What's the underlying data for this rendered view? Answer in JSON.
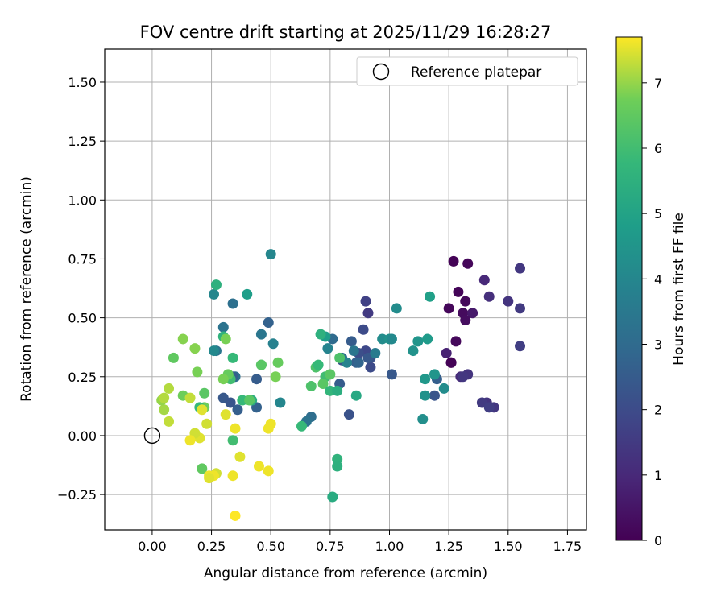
{
  "chart_data": {
    "type": "scatter",
    "title": "FOV centre drift starting at 2025/11/29 16:28:27",
    "xlabel": "Angular distance from reference (arcmin)",
    "ylabel": "Rotation from reference (arcmin)",
    "xlim": [
      -0.2,
      1.83
    ],
    "ylim": [
      -0.4,
      1.64
    ],
    "xticks": [
      "0.00",
      "0.25",
      "0.50",
      "0.75",
      "1.00",
      "1.25",
      "1.50",
      "1.75"
    ],
    "yticks": [
      "−0.25",
      "0.00",
      "0.25",
      "0.50",
      "0.75",
      "1.00",
      "1.25",
      "1.50"
    ],
    "grid": true,
    "legend": {
      "placement": "top-right",
      "entries": [
        "Reference platepar"
      ]
    },
    "reference_point": {
      "x": 0.0,
      "y": 0.0,
      "marker": "open-circle",
      "color": "#000000"
    },
    "colorbar": {
      "label": "Hours from first FF file",
      "min": 0,
      "max": 7.7,
      "ticks": [
        "0",
        "1",
        "2",
        "3",
        "4",
        "5",
        "6",
        "7"
      ],
      "colormap": "viridis"
    },
    "series": [
      {
        "x": [
          1.27,
          1.33,
          1.29,
          1.32,
          1.31,
          1.25,
          1.35,
          1.32,
          1.28,
          1.26,
          1.26,
          1.24,
          1.3,
          1.4,
          1.42,
          1.41,
          1.44,
          1.5,
          1.55,
          1.55,
          1.55,
          1.33,
          1.31,
          1.39,
          1.42,
          0.9,
          0.91,
          0.89,
          0.91,
          0.9,
          0.87,
          0.92,
          0.92,
          0.91,
          0.84,
          0.8,
          0.79,
          0.86,
          0.87,
          0.83,
          1.01,
          1.19,
          1.2,
          0.49,
          0.51,
          0.46,
          0.34,
          0.3,
          0.27,
          0.35,
          0.34,
          0.3,
          0.33,
          0.44,
          0.36,
          0.44,
          0.38,
          0.76,
          0.8,
          0.67,
          0.65,
          0.73,
          0.74,
          0.82,
          0.85,
          0.94,
          0.97,
          1.0,
          1.01,
          1.03,
          1.1,
          1.12,
          1.16,
          1.17,
          1.19,
          1.15,
          1.15,
          1.14,
          1.23,
          0.54,
          0.5,
          0.26,
          0.27,
          0.4,
          0.3,
          0.34,
          0.46,
          0.42,
          0.33,
          0.26,
          0.71,
          0.73,
          0.69,
          0.72,
          0.75,
          0.78,
          0.7,
          0.67,
          0.86,
          0.79,
          0.75,
          0.78,
          0.78,
          0.76,
          0.63,
          0.53,
          0.52,
          0.46,
          0.41,
          0.32,
          0.31,
          0.3,
          0.34,
          0.22,
          0.22,
          0.19,
          0.18,
          0.09,
          0.07,
          0.13,
          0.07,
          0.05,
          0.04,
          0.05,
          0.2,
          0.23,
          0.21,
          0.13,
          0.16,
          0.2,
          0.24,
          0.21,
          0.18,
          0.16,
          0.31,
          0.27,
          0.37,
          0.35,
          0.34,
          0.26,
          0.24,
          0.35,
          0.45,
          0.49,
          0.5,
          0.49
        ],
        "y": [
          0.74,
          0.73,
          0.61,
          0.57,
          0.52,
          0.54,
          0.52,
          0.49,
          0.4,
          0.31,
          0.31,
          0.35,
          0.25,
          0.66,
          0.59,
          0.14,
          0.12,
          0.57,
          0.71,
          0.54,
          0.38,
          0.26,
          0.25,
          0.14,
          0.12,
          0.57,
          0.52,
          0.45,
          0.34,
          0.36,
          0.35,
          0.33,
          0.29,
          0.33,
          0.4,
          0.32,
          0.22,
          0.31,
          0.31,
          0.09,
          0.26,
          0.17,
          0.24,
          0.48,
          0.39,
          0.43,
          0.56,
          0.46,
          0.36,
          0.25,
          0.25,
          0.16,
          0.14,
          0.24,
          0.11,
          0.12,
          0.15,
          0.41,
          0.33,
          0.08,
          0.06,
          0.42,
          0.37,
          0.31,
          0.36,
          0.35,
          0.41,
          0.41,
          0.41,
          0.54,
          0.36,
          0.4,
          0.41,
          0.59,
          0.26,
          0.24,
          0.17,
          0.07,
          0.2,
          0.14,
          0.77,
          0.6,
          0.64,
          0.6,
          0.42,
          0.33,
          0.3,
          0.15,
          0.24,
          0.36,
          0.43,
          0.25,
          0.29,
          0.22,
          0.19,
          0.19,
          0.3,
          0.21,
          0.17,
          0.33,
          0.26,
          -0.1,
          -0.13,
          -0.26,
          0.04,
          0.31,
          0.25,
          0.3,
          0.15,
          0.26,
          0.41,
          0.24,
          -0.02,
          0.18,
          0.12,
          0.27,
          0.37,
          0.33,
          0.2,
          0.17,
          0.06,
          0.11,
          0.15,
          0.16,
          0.12,
          0.05,
          -0.14,
          0.41,
          0.16,
          -0.01,
          -0.17,
          0.11,
          0.01,
          -0.02,
          0.09,
          -0.16,
          -0.09,
          0.03,
          -0.17,
          -0.17,
          -0.18,
          -0.34,
          -0.13,
          -0.15,
          0.05,
          0.03
        ],
        "hours": [
          0.05,
          0.15,
          0.1,
          0.2,
          0.25,
          0.15,
          0.6,
          0.3,
          0.2,
          0.1,
          0.05,
          0.8,
          1.1,
          1.0,
          1.2,
          1.3,
          1.4,
          1.3,
          1.4,
          1.5,
          1.6,
          1.3,
          1.4,
          1.5,
          1.6,
          1.7,
          1.5,
          2.0,
          1.6,
          1.9,
          2.1,
          2.2,
          2.0,
          2.4,
          2.5,
          2.3,
          2.5,
          2.6,
          2.8,
          2.2,
          2.4,
          2.3,
          2.6,
          2.7,
          3.8,
          3.4,
          3.2,
          3.3,
          3.4,
          3.2,
          2.6,
          2.4,
          2.3,
          2.5,
          2.6,
          2.7,
          5.8,
          3.0,
          3.3,
          3.1,
          3.3,
          4.8,
          3.9,
          3.9,
          3.4,
          3.6,
          4.2,
          4.4,
          4.1,
          4.2,
          4.4,
          4.5,
          4.7,
          4.9,
          4.5,
          4.6,
          4.4,
          4.3,
          4.2,
          4.0,
          4.0,
          4.0,
          5.5,
          4.8,
          5.6,
          5.8,
          6.0,
          5.4,
          6.0,
          4.1,
          5.5,
          6.0,
          6.2,
          6.4,
          5.7,
          5.4,
          5.8,
          6.2,
          5.2,
          6.2,
          6.4,
          5.6,
          5.5,
          5.3,
          5.8,
          6.6,
          6.8,
          6.4,
          6.4,
          6.6,
          6.8,
          6.8,
          6.0,
          6.4,
          6.7,
          6.8,
          6.9,
          6.5,
          7.2,
          6.7,
          7.3,
          7.1,
          7.0,
          7.2,
          5.8,
          7.4,
          6.5,
          6.9,
          7.3,
          7.5,
          7.6,
          7.5,
          7.4,
          7.6,
          7.5,
          7.4,
          7.5,
          7.6,
          7.6,
          7.6,
          7.5,
          7.7,
          7.6,
          7.6,
          7.6,
          7.6
        ]
      }
    ]
  }
}
